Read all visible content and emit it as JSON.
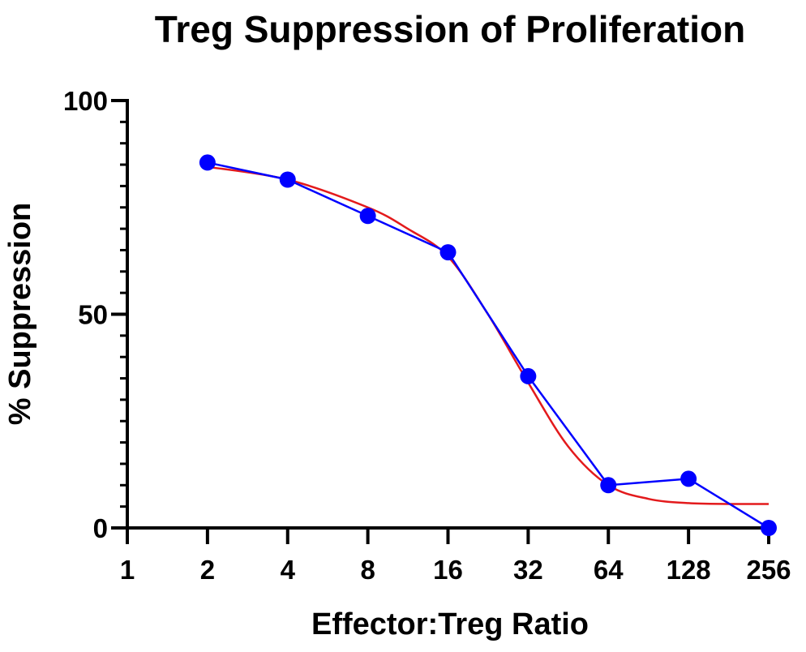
{
  "chart_data": {
    "type": "line",
    "title": "Treg Suppression of Proliferation",
    "xlabel": "Effector:Treg Ratio",
    "ylabel": "% Suppression",
    "x_scale": "log2",
    "x_ticks": [
      "1",
      "2",
      "4",
      "8",
      "16",
      "32",
      "64",
      "128",
      "256"
    ],
    "x_tick_values": [
      1,
      2,
      4,
      8,
      16,
      32,
      64,
      128,
      256
    ],
    "y_ticks": [
      "0",
      "50",
      "100"
    ],
    "y_tick_values": [
      0,
      50,
      100
    ],
    "y_minor_step": 5,
    "xlim": [
      1,
      256
    ],
    "ylim": [
      0,
      100
    ],
    "grid": false,
    "series": [
      {
        "kind": "data",
        "color": "#0000ff",
        "marker": "circle",
        "x": [
          2,
          4,
          8,
          16,
          32,
          64,
          128,
          256
        ],
        "y": [
          85.5,
          81.5,
          73,
          64.5,
          35.5,
          10,
          11.5,
          0
        ]
      },
      {
        "kind": "fit",
        "color": "#e31a1c",
        "marker": "none",
        "x": [
          2,
          4,
          8,
          11.3,
          16,
          22.6,
          32,
          45.3,
          64,
          90.5,
          128,
          181,
          256
        ],
        "y": [
          84.5,
          81.5,
          75,
          70,
          63.5,
          50,
          34,
          19,
          10,
          6.8,
          5.8,
          5.6,
          5.6
        ]
      }
    ]
  }
}
